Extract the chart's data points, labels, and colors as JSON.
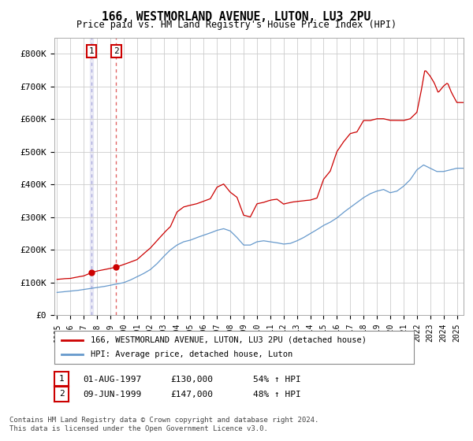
{
  "title": "166, WESTMORLAND AVENUE, LUTON, LU3 2PU",
  "subtitle": "Price paid vs. HM Land Registry's House Price Index (HPI)",
  "legend_label_red": "166, WESTMORLAND AVENUE, LUTON, LU3 2PU (detached house)",
  "legend_label_blue": "HPI: Average price, detached house, Luton",
  "transaction1_date": "01-AUG-1997",
  "transaction1_price": "£130,000",
  "transaction1_hpi": "54% ↑ HPI",
  "transaction2_date": "09-JUN-1999",
  "transaction2_price": "£147,000",
  "transaction2_hpi": "48% ↑ HPI",
  "footnote": "Contains HM Land Registry data © Crown copyright and database right 2024.\nThis data is licensed under the Open Government Licence v3.0.",
  "ylim": [
    0,
    850000
  ],
  "yticks": [
    0,
    100000,
    200000,
    300000,
    400000,
    500000,
    600000,
    700000,
    800000
  ],
  "ytick_labels": [
    "£0",
    "£100K",
    "£200K",
    "£300K",
    "£400K",
    "£500K",
    "£600K",
    "£700K",
    "£800K"
  ],
  "red_color": "#cc0000",
  "blue_color": "#6699cc",
  "bg_color": "#ffffff",
  "grid_color": "#cccccc",
  "transaction1_x": 1997.583,
  "transaction1_y": 130000,
  "transaction2_x": 1999.44,
  "transaction2_y": 147000,
  "xmin": 1995.0,
  "xmax": 2025.5
}
